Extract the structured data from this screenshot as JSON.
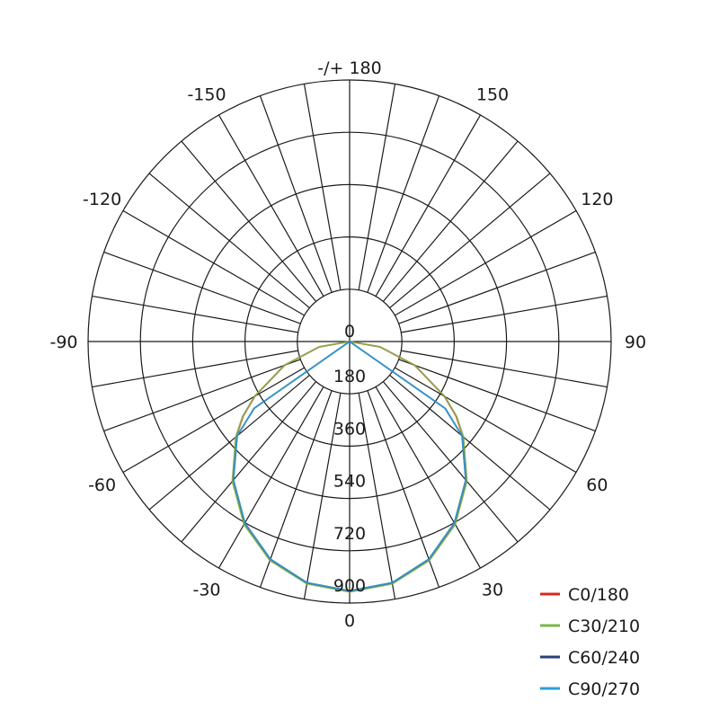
{
  "chart_data": {
    "type": "polar",
    "angle_labels": [
      {
        "angle": 180,
        "text": "-/+ 180"
      },
      {
        "angle": 150,
        "text": "150"
      },
      {
        "angle": -150,
        "text": "-150"
      },
      {
        "angle": 120,
        "text": "120"
      },
      {
        "angle": -120,
        "text": "-120"
      },
      {
        "angle": 90,
        "text": "90"
      },
      {
        "angle": -90,
        "text": "-90"
      },
      {
        "angle": 60,
        "text": "60"
      },
      {
        "angle": -60,
        "text": "-60"
      },
      {
        "angle": 30,
        "text": "30"
      },
      {
        "angle": -30,
        "text": "-30"
      },
      {
        "angle": 0,
        "text": "0"
      }
    ],
    "radial_ticks": [
      0,
      180,
      360,
      540,
      720,
      900
    ],
    "rmax": 900,
    "angle_step": 10,
    "gamma": [
      0,
      10,
      20,
      30,
      40,
      50,
      55,
      60,
      70,
      80,
      90
    ],
    "series": [
      {
        "name": "C0/180",
        "color": "#d42a20",
        "values": [
          860,
          845,
          800,
          725,
          626,
          509,
          447,
          376,
          238,
          106,
          0
        ]
      },
      {
        "name": "C30/210",
        "color": "#7ab648",
        "values": [
          862,
          847,
          802,
          727,
          628,
          512,
          450,
          378,
          240,
          107,
          0
        ]
      },
      {
        "name": "C60/240",
        "color": "#2c3e7a",
        "values": [
          858,
          843,
          797,
          721,
          622,
          505,
          402,
          0,
          0,
          0,
          0
        ]
      },
      {
        "name": "C90/270",
        "color": "#2aa0d8",
        "values": [
          858,
          843,
          797,
          721,
          622,
          505,
          400,
          0,
          0,
          0,
          0
        ]
      }
    ],
    "grid": true,
    "legend": "bottom-right"
  }
}
